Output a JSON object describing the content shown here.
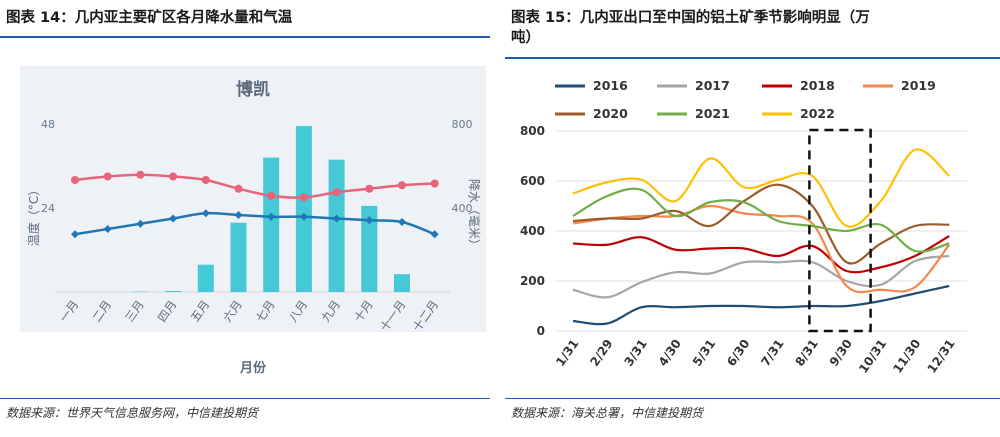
{
  "left": {
    "figure_title": "图表 14：几内亚主要矿区各月降水量和气温",
    "source": "数据来源：世界天气信息服务网，中信建投期货"
  },
  "right": {
    "figure_title_line1": "图表 15：几内亚出口至中国的铝土矿季节影响明显（万",
    "figure_title_line2": "吨）",
    "source": "数据来源：海关总署，中信建投期货"
  },
  "chart_data": [
    {
      "type": "bar+line",
      "title": "博凯",
      "xlabel": "月份",
      "ylabel_left": "温度（°C）",
      "ylabel_right": "降水（毫米）",
      "categories": [
        "一月",
        "二月",
        "三月",
        "四月",
        "五月",
        "六月",
        "七月",
        "八月",
        "九月",
        "十月",
        "十一月",
        "十二月"
      ],
      "left_axis": {
        "ticks": [
          24,
          48
        ],
        "range": [
          0,
          48
        ]
      },
      "right_axis": {
        "ticks": [
          400,
          800
        ],
        "range": [
          0,
          800
        ]
      },
      "series": [
        {
          "kind": "bar",
          "axis": "right",
          "color": "#45c9d6",
          "values": [
            0,
            0,
            2,
            5,
            130,
            330,
            640,
            790,
            630,
            410,
            85,
            0
          ]
        },
        {
          "kind": "line",
          "axis": "left",
          "color": "#e8647a",
          "values": [
            32,
            33,
            33.5,
            33,
            32,
            29.5,
            27.5,
            27,
            28.5,
            29.5,
            30.5,
            31
          ]
        },
        {
          "kind": "line",
          "axis": "left",
          "color": "#1f77b4",
          "values": [
            16.5,
            18,
            19.5,
            21,
            22.5,
            22,
            21.5,
            21.5,
            21,
            20.5,
            20,
            16.5
          ]
        }
      ]
    },
    {
      "type": "line",
      "title": "",
      "categories": [
        "1/31",
        "2/29",
        "3/31",
        "4/30",
        "5/31",
        "6/30",
        "7/31",
        "8/31",
        "9/30",
        "10/31",
        "11/30",
        "12/31"
      ],
      "ylim": [
        0,
        800
      ],
      "yticks": [
        0,
        200,
        400,
        600,
        800
      ],
      "highlight_box": {
        "from": "8/31",
        "to": "9/30"
      },
      "series": [
        {
          "name": "2016",
          "color": "#1f4e79",
          "values": [
            40,
            30,
            95,
            95,
            100,
            100,
            95,
            100,
            100,
            120,
            150,
            180
          ]
        },
        {
          "name": "2017",
          "color": "#a6a6a6",
          "values": [
            165,
            135,
            195,
            235,
            230,
            275,
            275,
            275,
            200,
            185,
            280,
            300
          ]
        },
        {
          "name": "2018",
          "color": "#c00000",
          "values": [
            350,
            345,
            375,
            325,
            330,
            330,
            300,
            340,
            240,
            255,
            300,
            380
          ]
        },
        {
          "name": "2019",
          "color": "#f4874b",
          "values": [
            430,
            450,
            460,
            460,
            500,
            470,
            460,
            430,
            180,
            165,
            175,
            345
          ]
        },
        {
          "name": "2020",
          "color": "#9c5b2b",
          "values": [
            440,
            450,
            450,
            480,
            420,
            520,
            585,
            500,
            275,
            350,
            420,
            425
          ]
        },
        {
          "name": "2021",
          "color": "#70ad47",
          "values": [
            460,
            540,
            565,
            460,
            515,
            515,
            440,
            420,
            400,
            425,
            320,
            350
          ]
        },
        {
          "name": "2022",
          "color": "#ffc000",
          "values": [
            550,
            595,
            605,
            520,
            690,
            575,
            605,
            620,
            420,
            520,
            725,
            620
          ]
        }
      ]
    }
  ]
}
